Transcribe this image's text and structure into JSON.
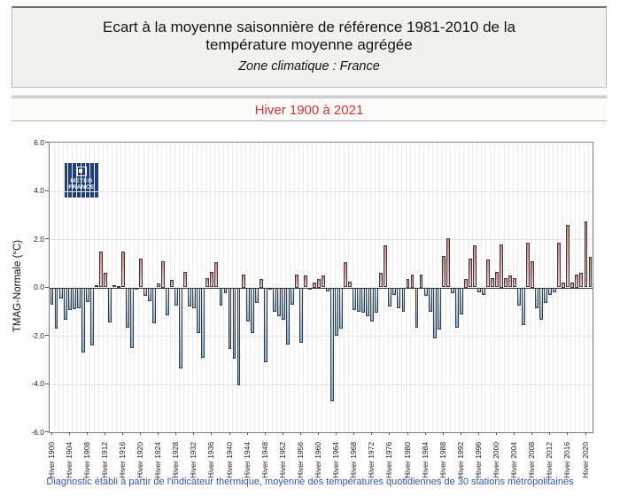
{
  "header": {
    "title_line1": "Ecart à la moyenne saisonnière  de référence 1981-2010  de la",
    "title_line2": "température moyenne  agrégée",
    "zone": "Zone climatique : France",
    "period": "Hiver 1900 à 2021",
    "period_color": "#d93232"
  },
  "logo": {
    "line1": "METEO",
    "line2": "FRANCE",
    "bg_color": "#1e3f7a"
  },
  "footer": {
    "caption": "Diagnostic établi à partir de l'indicateur thermique, moyenne des températures quotidiennes de 30 stations métropolitaines",
    "color": "#2d59b0"
  },
  "chart_data": {
    "type": "bar",
    "title": "Ecart à la moyenne saisonnière de référence 1981-2010 de la température moyenne agrégée",
    "subtitle": "Zone climatique : France — Hiver 1900 à 2021",
    "xlabel": "",
    "ylabel": "TMAG-Normale (°C)",
    "ylim": [
      -6.0,
      6.0
    ],
    "ytick_step": 2,
    "grid": true,
    "legend": "none",
    "x_tick_prefix": "Hiver ",
    "x_tick_every": 4,
    "x_start_year": 1900,
    "x_end_year": 2021,
    "colors": {
      "positive_tip": "#d98282",
      "positive_base": "#f2cbcb",
      "negative_base": "#d9eafb",
      "negative_tip": "#7fb0dd",
      "bar_outline": "#3c3c3c",
      "zero_line": "#333333"
    },
    "years": [
      1900,
      1901,
      1902,
      1903,
      1904,
      1905,
      1906,
      1907,
      1908,
      1909,
      1910,
      1911,
      1912,
      1913,
      1914,
      1915,
      1916,
      1917,
      1918,
      1919,
      1920,
      1921,
      1922,
      1923,
      1924,
      1925,
      1926,
      1927,
      1928,
      1929,
      1930,
      1931,
      1932,
      1933,
      1934,
      1935,
      1936,
      1937,
      1938,
      1939,
      1940,
      1941,
      1942,
      1943,
      1944,
      1945,
      1946,
      1947,
      1948,
      1949,
      1950,
      1951,
      1952,
      1953,
      1954,
      1955,
      1956,
      1957,
      1958,
      1959,
      1960,
      1961,
      1962,
      1963,
      1964,
      1965,
      1966,
      1967,
      1968,
      1969,
      1970,
      1971,
      1972,
      1973,
      1974,
      1975,
      1976,
      1977,
      1978,
      1979,
      1980,
      1981,
      1982,
      1983,
      1984,
      1985,
      1986,
      1987,
      1988,
      1989,
      1990,
      1991,
      1992,
      1993,
      1994,
      1995,
      1996,
      1997,
      1998,
      1999,
      2000,
      2001,
      2002,
      2003,
      2004,
      2005,
      2006,
      2007,
      2008,
      2009,
      2010,
      2011,
      2012,
      2013,
      2014,
      2015,
      2016,
      2017,
      2018,
      2019,
      2020,
      2021
    ],
    "values": [
      -0.7,
      -1.7,
      -0.45,
      -1.35,
      -0.95,
      -0.9,
      -0.85,
      -2.7,
      -0.6,
      -2.4,
      0.1,
      1.5,
      0.6,
      -1.45,
      0.1,
      0.05,
      1.5,
      -1.65,
      -2.5,
      -0.1,
      1.2,
      -0.35,
      -0.55,
      -1.5,
      0.15,
      1.1,
      -1.15,
      0.3,
      -0.75,
      -3.35,
      0.65,
      -0.8,
      -0.85,
      -1.9,
      -2.9,
      0.4,
      0.65,
      1.05,
      -0.75,
      -0.25,
      -2.55,
      -2.95,
      -4.05,
      0.55,
      -1.4,
      -1.9,
      -0.65,
      0.35,
      -3.1,
      -0.05,
      -1.0,
      -1.2,
      -1.35,
      -2.35,
      -0.7,
      0.55,
      -2.3,
      0.5,
      -0.1,
      0.2,
      0.35,
      0.5,
      -0.15,
      -4.7,
      -2.0,
      -1.7,
      1.05,
      0.25,
      -0.95,
      -1.0,
      -1.05,
      -1.2,
      -1.4,
      -1.05,
      0.6,
      1.75,
      -0.8,
      -0.3,
      -0.85,
      -1.0,
      0.35,
      0.55,
      -1.65,
      0.55,
      -0.35,
      -1.0,
      -2.1,
      -1.75,
      1.3,
      2.05,
      -0.25,
      -1.65,
      -1.1,
      0.35,
      1.2,
      1.75,
      -0.2,
      -0.3,
      1.15,
      0.4,
      0.65,
      1.8,
      0.4,
      0.5,
      0.4,
      -0.75,
      -1.55,
      1.85,
      1.1,
      -0.85,
      -1.35,
      -0.65,
      -0.3,
      -0.2,
      1.85,
      0.2,
      2.6,
      0.2,
      0.55,
      0.6,
      2.75,
      1.25
    ]
  }
}
